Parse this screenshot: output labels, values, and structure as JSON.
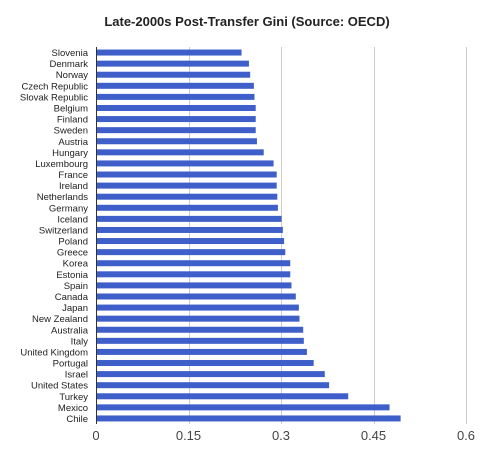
{
  "chart_data": {
    "type": "bar",
    "orientation": "horizontal",
    "title": "Late-2000s Post-Transfer Gini (Source: OECD)",
    "xlabel": "",
    "ylabel": "",
    "xlim": [
      0,
      0.6
    ],
    "ticks": [
      "0",
      "0.15",
      "0.3",
      "0.45",
      "0.6"
    ],
    "tick_values": [
      0,
      0.15,
      0.3,
      0.45,
      0.6
    ],
    "grid": true,
    "legend": "none",
    "bar_color": "#3e5fc9",
    "categories": [
      "Slovenia",
      "Denmark",
      "Norway",
      "Czech Republic",
      "Slovak Republic",
      "Belgium",
      "Finland",
      "Sweden",
      "Austria",
      "Hungary",
      "Luxembourg",
      "France",
      "Ireland",
      "Netherlands",
      "Germany",
      "Iceland",
      "Switzerland",
      "Poland",
      "Greece",
      "Korea",
      "Estonia",
      "Spain",
      "Canada",
      "Japan",
      "New Zealand",
      "Australia",
      "Italy",
      "United Kingdom",
      "Portugal",
      "Israel",
      "United States",
      "Turkey",
      "Mexico",
      "Chile"
    ],
    "values": [
      0.236,
      0.248,
      0.25,
      0.256,
      0.257,
      0.259,
      0.259,
      0.259,
      0.261,
      0.272,
      0.288,
      0.293,
      0.293,
      0.294,
      0.295,
      0.301,
      0.303,
      0.305,
      0.307,
      0.315,
      0.315,
      0.317,
      0.324,
      0.329,
      0.33,
      0.336,
      0.337,
      0.342,
      0.353,
      0.371,
      0.378,
      0.409,
      0.476,
      0.494
    ]
  }
}
